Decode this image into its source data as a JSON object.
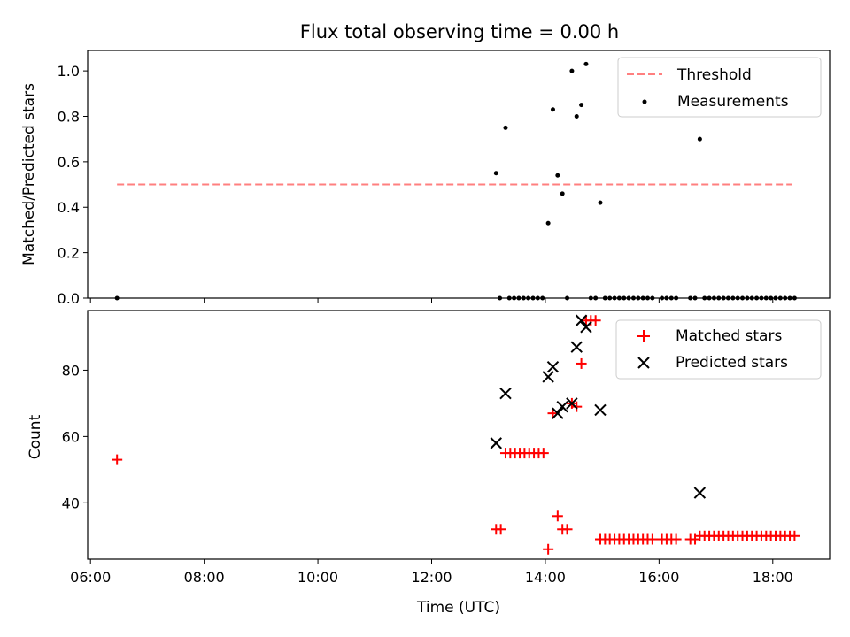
{
  "chart_data": [
    {
      "type": "scatter",
      "title": "Flux total observing time = 0.00 h",
      "xlabel": "",
      "ylabel": "Matched/Predicted stars",
      "xlim": [
        "05:57",
        "19:00"
      ],
      "ylim": [
        0,
        1.09
      ],
      "yticks": [
        "0.0",
        "0.2",
        "0.4",
        "0.6",
        "0.8",
        "1.0"
      ],
      "legend_position": "top-right",
      "threshold": {
        "name": "Threshold",
        "value": 0.5,
        "x_start": "06:28",
        "x_end": "18:20",
        "color": "#ff7f7f",
        "style": "dashed"
      },
      "series": [
        {
          "name": "Measurements",
          "color": "#000000",
          "marker": "dot",
          "points": [
            [
              "06:28",
              0.0
            ],
            [
              "13:08",
              0.55
            ],
            [
              "13:12",
              0.0
            ],
            [
              "13:18",
              0.75
            ],
            [
              "13:22",
              0.0
            ],
            [
              "13:27",
              0.0
            ],
            [
              "13:32",
              0.0
            ],
            [
              "13:37",
              0.0
            ],
            [
              "13:42",
              0.0
            ],
            [
              "13:47",
              0.0
            ],
            [
              "13:52",
              0.0
            ],
            [
              "13:57",
              0.0
            ],
            [
              "14:03",
              0.33
            ],
            [
              "14:08",
              0.83
            ],
            [
              "14:13",
              0.54
            ],
            [
              "14:18",
              0.46
            ],
            [
              "14:23",
              0.0
            ],
            [
              "14:28",
              1.0
            ],
            [
              "14:33",
              0.8
            ],
            [
              "14:38",
              0.85
            ],
            [
              "14:43",
              1.03
            ],
            [
              "14:48",
              0.0
            ],
            [
              "14:53",
              0.0
            ],
            [
              "14:58",
              0.42
            ],
            [
              "15:03",
              0.0
            ],
            [
              "15:08",
              0.0
            ],
            [
              "15:13",
              0.0
            ],
            [
              "15:18",
              0.0
            ],
            [
              "15:23",
              0.0
            ],
            [
              "15:28",
              0.0
            ],
            [
              "15:33",
              0.0
            ],
            [
              "15:38",
              0.0
            ],
            [
              "15:43",
              0.0
            ],
            [
              "15:48",
              0.0
            ],
            [
              "15:53",
              0.0
            ],
            [
              "16:03",
              0.0
            ],
            [
              "16:08",
              0.0
            ],
            [
              "16:13",
              0.0
            ],
            [
              "16:18",
              0.0
            ],
            [
              "16:33",
              0.0
            ],
            [
              "16:38",
              0.0
            ],
            [
              "16:43",
              0.7
            ],
            [
              "16:48",
              0.0
            ],
            [
              "16:53",
              0.0
            ],
            [
              "16:58",
              0.0
            ],
            [
              "17:03",
              0.0
            ],
            [
              "17:08",
              0.0
            ],
            [
              "17:13",
              0.0
            ],
            [
              "17:18",
              0.0
            ],
            [
              "17:23",
              0.0
            ],
            [
              "17:28",
              0.0
            ],
            [
              "17:33",
              0.0
            ],
            [
              "17:38",
              0.0
            ],
            [
              "17:43",
              0.0
            ],
            [
              "17:48",
              0.0
            ],
            [
              "17:53",
              0.0
            ],
            [
              "17:58",
              0.0
            ],
            [
              "18:03",
              0.0
            ],
            [
              "18:08",
              0.0
            ],
            [
              "18:13",
              0.0
            ],
            [
              "18:18",
              0.0
            ],
            [
              "18:23",
              0.0
            ]
          ]
        }
      ]
    },
    {
      "type": "scatter",
      "title": "",
      "xlabel": "Time (UTC)",
      "ylabel": "Count",
      "xlim": [
        "05:57",
        "19:00"
      ],
      "ylim": [
        23,
        98
      ],
      "yticks": [
        "40",
        "60",
        "80"
      ],
      "xticks": [
        "06:00",
        "08:00",
        "10:00",
        "12:00",
        "14:00",
        "16:00",
        "18:00"
      ],
      "legend_position": "top-right",
      "series": [
        {
          "name": "Matched stars",
          "color": "#ff0000",
          "marker": "plus",
          "points": [
            [
              "06:28",
              53
            ],
            [
              "13:08",
              32
            ],
            [
              "13:13",
              32
            ],
            [
              "13:18",
              55
            ],
            [
              "13:23",
              55
            ],
            [
              "13:28",
              55
            ],
            [
              "13:33",
              55
            ],
            [
              "13:38",
              55
            ],
            [
              "13:43",
              55
            ],
            [
              "13:48",
              55
            ],
            [
              "13:53",
              55
            ],
            [
              "13:58",
              55
            ],
            [
              "14:03",
              26
            ],
            [
              "14:08",
              67
            ],
            [
              "14:13",
              36
            ],
            [
              "14:18",
              32
            ],
            [
              "14:23",
              32
            ],
            [
              "14:28",
              70
            ],
            [
              "14:33",
              69
            ],
            [
              "14:38",
              82
            ],
            [
              "14:43",
              95
            ],
            [
              "14:48",
              95
            ],
            [
              "14:53",
              95
            ],
            [
              "14:58",
              29
            ],
            [
              "15:03",
              29
            ],
            [
              "15:08",
              29
            ],
            [
              "15:13",
              29
            ],
            [
              "15:18",
              29
            ],
            [
              "15:23",
              29
            ],
            [
              "15:28",
              29
            ],
            [
              "15:33",
              29
            ],
            [
              "15:38",
              29
            ],
            [
              "15:43",
              29
            ],
            [
              "15:48",
              29
            ],
            [
              "15:53",
              29
            ],
            [
              "16:03",
              29
            ],
            [
              "16:08",
              29
            ],
            [
              "16:13",
              29
            ],
            [
              "16:18",
              29
            ],
            [
              "16:33",
              29
            ],
            [
              "16:38",
              29
            ],
            [
              "16:43",
              30
            ],
            [
              "16:48",
              30
            ],
            [
              "16:53",
              30
            ],
            [
              "16:58",
              30
            ],
            [
              "17:03",
              30
            ],
            [
              "17:08",
              30
            ],
            [
              "17:13",
              30
            ],
            [
              "17:18",
              30
            ],
            [
              "17:23",
              30
            ],
            [
              "17:28",
              30
            ],
            [
              "17:33",
              30
            ],
            [
              "17:38",
              30
            ],
            [
              "17:43",
              30
            ],
            [
              "17:48",
              30
            ],
            [
              "17:53",
              30
            ],
            [
              "17:58",
              30
            ],
            [
              "18:03",
              30
            ],
            [
              "18:08",
              30
            ],
            [
              "18:13",
              30
            ],
            [
              "18:18",
              30
            ],
            [
              "18:23",
              30
            ]
          ]
        },
        {
          "name": "Predicted stars",
          "color": "#000000",
          "marker": "x",
          "points": [
            [
              "13:08",
              58
            ],
            [
              "13:18",
              73
            ],
            [
              "14:03",
              78
            ],
            [
              "14:08",
              81
            ],
            [
              "14:13",
              67
            ],
            [
              "14:18",
              69
            ],
            [
              "14:28",
              70
            ],
            [
              "14:33",
              87
            ],
            [
              "14:38",
              95
            ],
            [
              "14:43",
              93
            ],
            [
              "14:58",
              68
            ],
            [
              "16:43",
              43
            ]
          ]
        }
      ]
    }
  ]
}
